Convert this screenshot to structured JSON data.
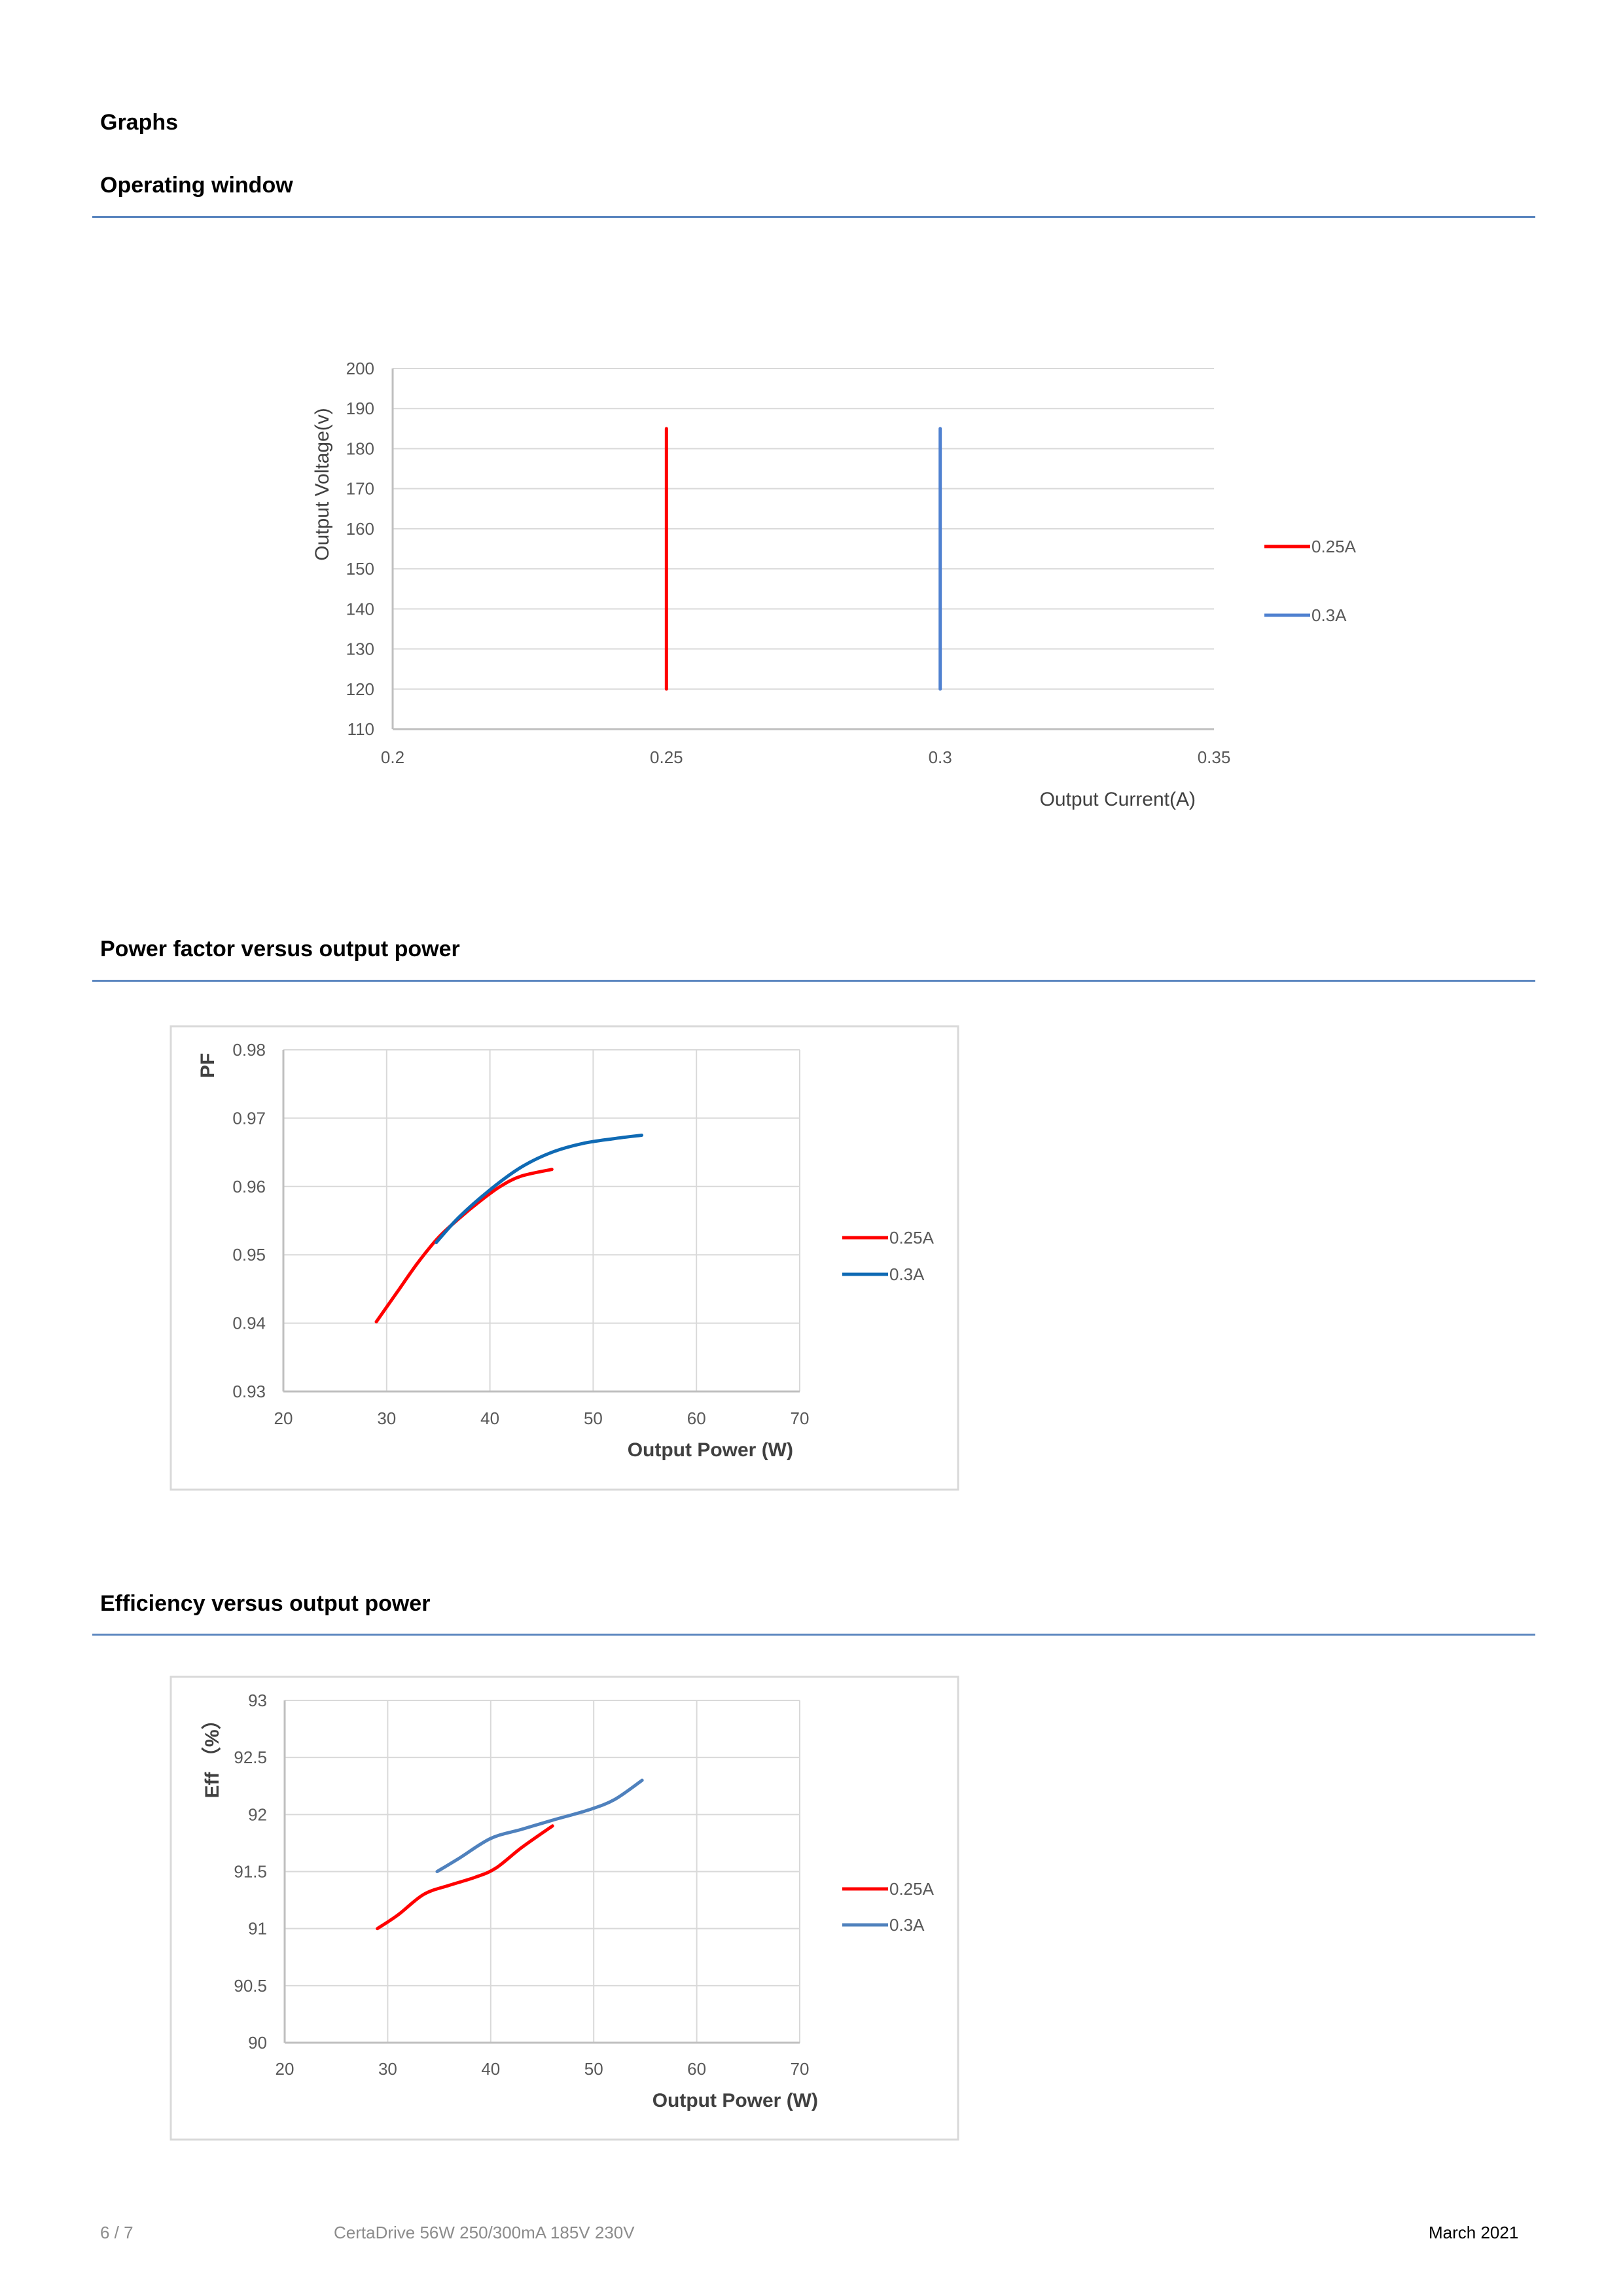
{
  "headings": {
    "graphs": "Graphs",
    "operating_window": "Operating window",
    "pf": "Power factor versus output power",
    "eff": "Efficiency versus output power"
  },
  "footer": {
    "page": "6 / 7",
    "product": "CertaDrive 56W 250/300mA 185V 230V",
    "date": "March 2021"
  },
  "colors": {
    "rule": "#5b86bf",
    "red": "#ff0000"
  },
  "chart_data": [
    {
      "id": "operating-window",
      "type": "line",
      "title": "",
      "xlabel": "Output Current(A)",
      "ylabel": "Output Voltage(v)",
      "xlim": [
        0.2,
        0.35
      ],
      "ylim": [
        110,
        200
      ],
      "xticks": [
        "0.2",
        "0.25",
        "0.3",
        "0.35"
      ],
      "yticks": [
        "110",
        "120",
        "130",
        "140",
        "150",
        "160",
        "170",
        "180",
        "190",
        "200"
      ],
      "grid": "horizontal",
      "legend": "right",
      "series": [
        {
          "name": "0.25A",
          "color": "#ff0000",
          "x": [
            0.25,
            0.25
          ],
          "y": [
            120,
            185
          ]
        },
        {
          "name": "0.3A",
          "color": "#4f81d0",
          "x": [
            0.3,
            0.3
          ],
          "y": [
            120,
            185
          ]
        }
      ]
    },
    {
      "id": "power-factor",
      "type": "line",
      "title": "",
      "xlabel": "Output Power (W)",
      "ylabel": "PF",
      "xlim": [
        20,
        70
      ],
      "ylim": [
        0.93,
        0.98
      ],
      "xticks": [
        "20",
        "30",
        "40",
        "50",
        "60",
        "70"
      ],
      "yticks": [
        "0.93",
        "0.94",
        "0.95",
        "0.96",
        "0.97",
        "0.98"
      ],
      "grid": "both",
      "legend": "right",
      "series": [
        {
          "name": "0.25A",
          "color": "#ff0000",
          "x": [
            29,
            31,
            33,
            35,
            37,
            39,
            41,
            43,
            46
          ],
          "y": [
            0.9402,
            0.9445,
            0.9488,
            0.9525,
            0.9553,
            0.9578,
            0.96,
            0.9615,
            0.9625
          ]
        },
        {
          "name": "0.3A",
          "color": "#0f6ab4",
          "x": [
            34.8,
            37,
            40,
            43,
            46,
            49,
            52,
            54.7
          ],
          "y": [
            0.9518,
            0.9555,
            0.9595,
            0.9628,
            0.965,
            0.9663,
            0.967,
            0.9675
          ]
        }
      ]
    },
    {
      "id": "efficiency",
      "type": "line",
      "title": "",
      "xlabel": "Output Power (W)",
      "ylabel": "Eff （%）",
      "xlim": [
        20,
        70
      ],
      "ylim": [
        90,
        93
      ],
      "xticks": [
        "20",
        "30",
        "40",
        "50",
        "60",
        "70"
      ],
      "yticks": [
        "90",
        "90.5",
        "91",
        "91.5",
        "92",
        "92.5",
        "93"
      ],
      "grid": "both",
      "legend": "right",
      "series": [
        {
          "name": "0.25A",
          "color": "#ff0000",
          "x": [
            29,
            31,
            33.5,
            36,
            38.5,
            40.5,
            43,
            46
          ],
          "y": [
            91.0,
            91.12,
            91.3,
            91.38,
            91.45,
            91.53,
            91.71,
            91.9
          ]
        },
        {
          "name": "0.3A",
          "color": "#4f81bd",
          "x": [
            34.8,
            37,
            40,
            43,
            46,
            49.5,
            52,
            54.7
          ],
          "y": [
            91.5,
            91.62,
            91.79,
            91.87,
            91.95,
            92.04,
            92.13,
            92.3
          ]
        }
      ]
    }
  ]
}
